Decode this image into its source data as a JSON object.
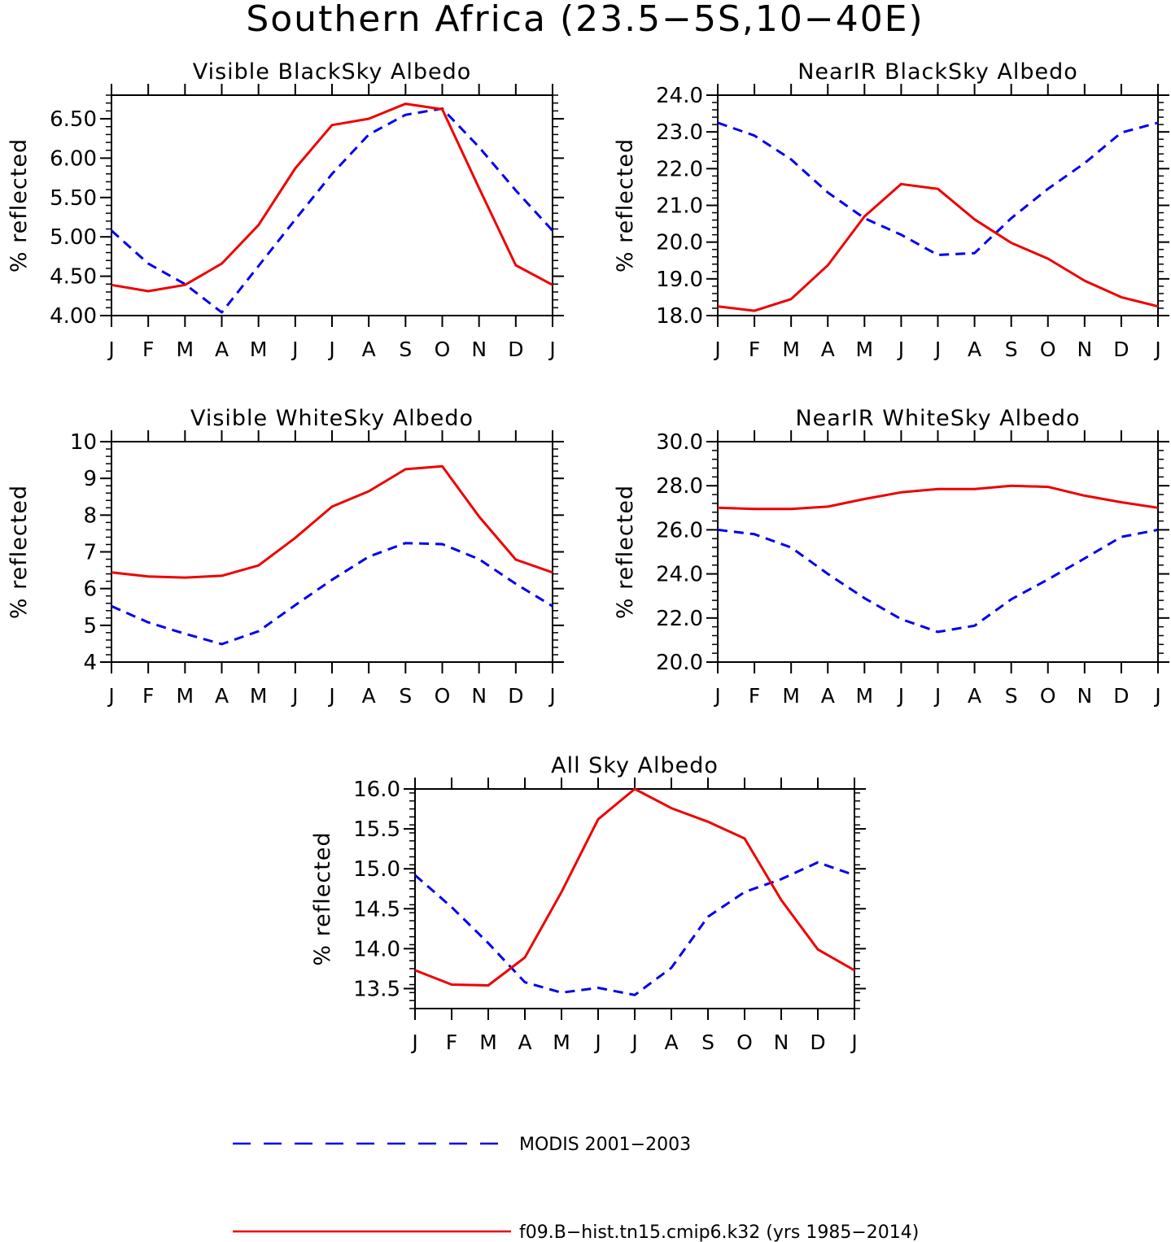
{
  "title": "Southern Africa (23.5−5S,10−40E)",
  "colors": {
    "modis": "#0000ee",
    "model": "#ee0000",
    "axis": "#000000"
  },
  "legend": [
    {
      "key": "modis",
      "label": "MODIS 2001−2003",
      "style": "dashed"
    },
    {
      "key": "model",
      "label": "f09.B−hist.tn15.cmip6.k32 (yrs 1985−2014)",
      "style": "solid"
    }
  ],
  "chart_data": [
    {
      "type": "line",
      "title": "Visible BlackSky Albedo",
      "ylabel": "% reflected",
      "xlabel": "",
      "categories": [
        "J",
        "F",
        "M",
        "A",
        "M",
        "J",
        "J",
        "A",
        "S",
        "O",
        "N",
        "D",
        "J"
      ],
      "ylim": [
        4.0,
        6.8
      ],
      "yticks": [
        "4.00",
        "4.50",
        "5.00",
        "5.50",
        "6.00",
        "6.50"
      ],
      "yticks_values": [
        4.0,
        4.5,
        5.0,
        5.5,
        6.0,
        6.5
      ],
      "series": [
        {
          "name": "MODIS 2001−2003",
          "values": [
            5.08,
            4.66,
            4.4,
            4.04,
            4.63,
            5.22,
            5.8,
            6.3,
            6.55,
            6.63,
            6.14,
            5.59,
            5.08
          ]
        },
        {
          "name": "f09.B−hist.tn15.cmip6.k32 (yrs 1985−2014)",
          "values": [
            4.39,
            4.31,
            4.39,
            4.66,
            5.15,
            5.87,
            6.42,
            6.5,
            6.69,
            6.62,
            5.62,
            4.64,
            4.39
          ]
        }
      ]
    },
    {
      "type": "line",
      "title": "NearIR BlackSky Albedo",
      "ylabel": "% reflected",
      "xlabel": "",
      "categories": [
        "J",
        "F",
        "M",
        "A",
        "M",
        "J",
        "J",
        "A",
        "S",
        "O",
        "N",
        "D",
        "J"
      ],
      "ylim": [
        18.0,
        24.0
      ],
      "yticks": [
        "18.0",
        "19.0",
        "20.0",
        "21.0",
        "22.0",
        "23.0",
        "24.0"
      ],
      "yticks_values": [
        18.0,
        19.0,
        20.0,
        21.0,
        22.0,
        23.0,
        24.0
      ],
      "series": [
        {
          "name": "MODIS 2001−2003",
          "values": [
            23.25,
            22.9,
            22.25,
            21.35,
            20.65,
            20.2,
            19.65,
            19.7,
            20.65,
            21.45,
            22.15,
            22.98,
            23.25
          ]
        },
        {
          "name": "f09.B−hist.tn15.cmip6.k32 (yrs 1985−2014)",
          "values": [
            18.25,
            18.13,
            18.45,
            19.37,
            20.7,
            21.58,
            21.45,
            20.62,
            19.98,
            19.55,
            18.95,
            18.5,
            18.25
          ]
        }
      ]
    },
    {
      "type": "line",
      "title": "Visible WhiteSky Albedo",
      "ylabel": "% reflected",
      "xlabel": "",
      "categories": [
        "J",
        "F",
        "M",
        "A",
        "M",
        "J",
        "J",
        "A",
        "S",
        "O",
        "N",
        "D",
        "J"
      ],
      "ylim": [
        4,
        10
      ],
      "yticks": [
        "4",
        "5",
        "6",
        "7",
        "8",
        "9",
        "10"
      ],
      "yticks_values": [
        4,
        5,
        6,
        7,
        8,
        9,
        10
      ],
      "series": [
        {
          "name": "MODIS 2001−2003",
          "values": [
            5.52,
            5.08,
            4.77,
            4.49,
            4.84,
            5.55,
            6.24,
            6.87,
            7.24,
            7.21,
            6.8,
            6.13,
            5.52
          ]
        },
        {
          "name": "f09.B−hist.tn15.cmip6.k32 (yrs 1985−2014)",
          "values": [
            6.44,
            6.33,
            6.3,
            6.35,
            6.63,
            7.38,
            8.23,
            8.65,
            9.25,
            9.33,
            7.96,
            6.79,
            6.44
          ]
        }
      ]
    },
    {
      "type": "line",
      "title": "NearIR WhiteSky Albedo",
      "ylabel": "% reflected",
      "xlabel": "",
      "categories": [
        "J",
        "F",
        "M",
        "A",
        "M",
        "J",
        "J",
        "A",
        "S",
        "O",
        "N",
        "D",
        "J"
      ],
      "ylim": [
        20.0,
        30.0
      ],
      "yticks": [
        "20.0",
        "22.0",
        "24.0",
        "26.0",
        "28.0",
        "30.0"
      ],
      "yticks_values": [
        20.0,
        22.0,
        24.0,
        26.0,
        28.0,
        30.0
      ],
      "series": [
        {
          "name": "MODIS 2001−2003",
          "values": [
            26.0,
            25.8,
            25.2,
            24.0,
            22.9,
            21.95,
            21.37,
            21.65,
            22.85,
            23.75,
            24.7,
            25.68,
            26.0
          ]
        },
        {
          "name": "f09.B−hist.tn15.cmip6.k32 (yrs 1985−2014)",
          "values": [
            27.0,
            26.95,
            26.95,
            27.05,
            27.4,
            27.7,
            27.85,
            27.85,
            28.0,
            27.95,
            27.55,
            27.25,
            27.0
          ]
        }
      ]
    },
    {
      "type": "line",
      "title": "All Sky Albedo",
      "ylabel": "% reflected",
      "xlabel": "",
      "categories": [
        "J",
        "F",
        "M",
        "A",
        "M",
        "J",
        "J",
        "A",
        "S",
        "O",
        "N",
        "D",
        "J"
      ],
      "ylim": [
        13.25,
        16.0
      ],
      "yticks": [
        "13.5",
        "14.0",
        "14.5",
        "15.0",
        "15.5",
        "16.0"
      ],
      "yticks_values": [
        13.5,
        14.0,
        14.5,
        15.0,
        15.5,
        16.0
      ],
      "series": [
        {
          "name": "MODIS 2001−2003",
          "values": [
            14.92,
            14.52,
            14.07,
            13.58,
            13.45,
            13.51,
            13.42,
            13.76,
            14.4,
            14.71,
            14.87,
            15.08,
            14.92
          ]
        },
        {
          "name": "f09.B−hist.tn15.cmip6.k32 (yrs 1985−2014)",
          "values": [
            13.73,
            13.55,
            13.54,
            13.89,
            14.71,
            15.62,
            16.0,
            15.76,
            15.59,
            15.38,
            14.61,
            13.99,
            13.73
          ]
        }
      ]
    }
  ]
}
